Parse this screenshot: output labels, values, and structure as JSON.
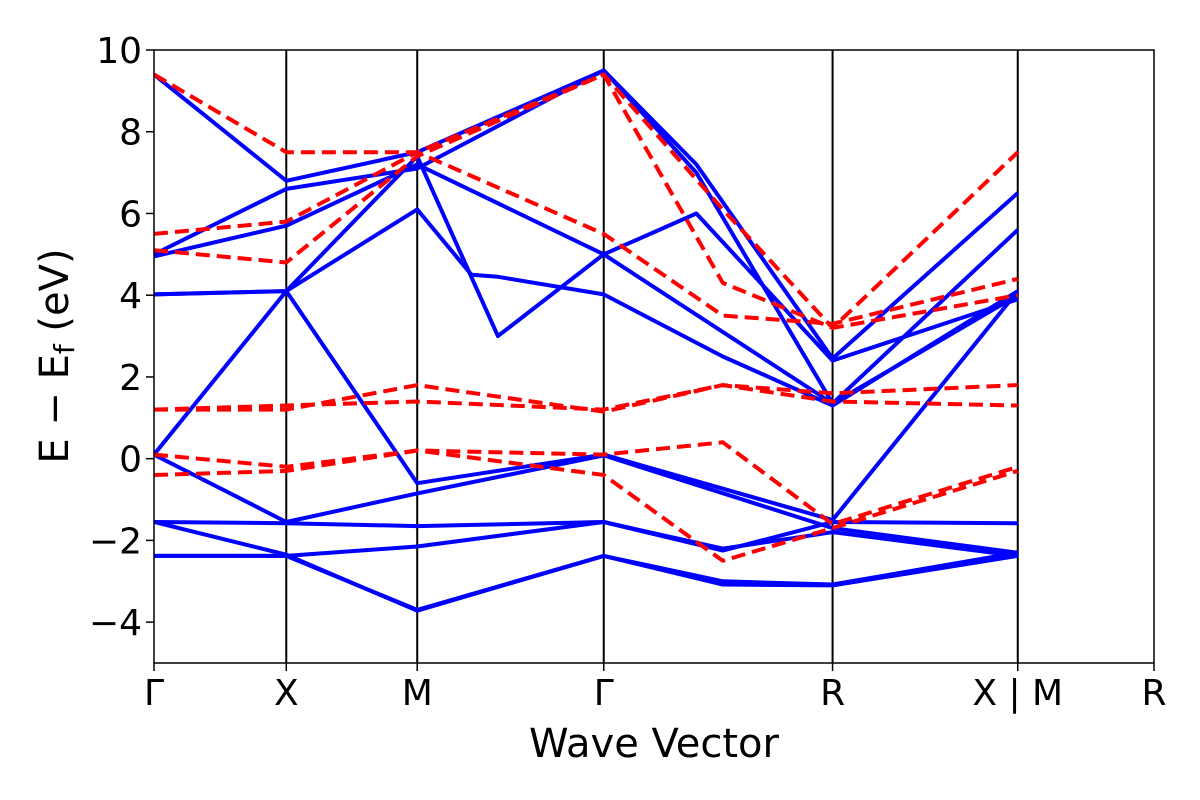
{
  "chart_data": {
    "type": "line",
    "xlabel": "Wave Vector",
    "ylabel": {
      "main": "E − E",
      "sub": "f",
      "unit": " (eV)"
    },
    "ylim": [
      -5,
      10
    ],
    "yticks": [
      {
        "value": -4,
        "label": "−4"
      },
      {
        "value": -2,
        "label": "−2"
      },
      {
        "value": 0,
        "label": "0"
      },
      {
        "value": 2,
        "label": "2"
      },
      {
        "value": 4,
        "label": "4"
      },
      {
        "value": 6,
        "label": "6"
      },
      {
        "value": 8,
        "label": "8"
      },
      {
        "value": 10,
        "label": "10"
      }
    ],
    "xlim": [
      0,
      7.56
    ],
    "kpoints": [
      {
        "label": "Γ",
        "x": 0
      },
      {
        "label": "X",
        "x": 1.0
      },
      {
        "label": "M",
        "x": 1.99
      },
      {
        "label": "Γ",
        "x": 3.4
      },
      {
        "label": "R",
        "x": 5.13
      },
      {
        "label": "X | M",
        "x": 6.53
      },
      {
        "label": "R",
        "x": 7.56
      }
    ],
    "grid": false,
    "series": [
      {
        "style": "solid",
        "color": "#0000ff",
        "bands": [
          [
            [
              0,
              -2.38
            ],
            [
              1,
              -2.38
            ],
            [
              1.99,
              -2.15
            ],
            [
              3.4,
              -1.55
            ],
            [
              4.3,
              -2.25
            ],
            [
              5.13,
              -1.55
            ],
            [
              6.53,
              -1.58
            ]
          ],
          [
            [
              0,
              -1.55
            ],
            [
              1,
              -1.58
            ],
            [
              1.99,
              -1.65
            ],
            [
              3.4,
              -1.55
            ],
            [
              4.3,
              -2.2
            ],
            [
              5.13,
              -1.8
            ],
            [
              6.53,
              -2.38
            ]
          ],
          [
            [
              0,
              -2.38
            ],
            [
              1,
              -2.38
            ],
            [
              1.99,
              -3.7
            ],
            [
              3.4,
              -2.38
            ],
            [
              4.3,
              -3.0
            ],
            [
              5.13,
              -3.08
            ],
            [
              6.53,
              -2.3
            ]
          ],
          [
            [
              0,
              -1.55
            ],
            [
              1,
              -2.35
            ],
            [
              1.99,
              -3.72
            ],
            [
              3.4,
              -2.38
            ],
            [
              4.3,
              -3.08
            ],
            [
              5.13,
              -3.1
            ],
            [
              6.53,
              -2.38
            ]
          ],
          [
            [
              0,
              0.1
            ],
            [
              1,
              -1.55
            ],
            [
              1.99,
              -0.85
            ],
            [
              3.4,
              0.08
            ],
            [
              5.13,
              -1.7
            ],
            [
              6.53,
              -2.3
            ]
          ],
          [
            [
              0,
              0.1
            ],
            [
              1,
              4.1
            ],
            [
              1.99,
              -0.6
            ],
            [
              3.4,
              0.1
            ],
            [
              5.13,
              -1.5
            ],
            [
              6.53,
              4.1
            ]
          ],
          [
            [
              0,
              4.02
            ],
            [
              1,
              4.1
            ],
            [
              1.99,
              6.1
            ],
            [
              2.4,
              4.5
            ],
            [
              2.6,
              4.45
            ],
            [
              3.4,
              4.02
            ],
            [
              4.3,
              2.5
            ],
            [
              5.13,
              1.3
            ],
            [
              6.53,
              4.1
            ]
          ],
          [
            [
              0,
              4.02
            ],
            [
              1,
              4.1
            ],
            [
              1.99,
              7.4
            ],
            [
              2.6,
              3.0
            ],
            [
              3.4,
              5.0
            ],
            [
              5.13,
              1.35
            ],
            [
              6.53,
              4.0
            ]
          ],
          [
            [
              0,
              4.95
            ],
            [
              1,
              5.7
            ],
            [
              1.99,
              7.2
            ],
            [
              3.4,
              5.0
            ],
            [
              4.1,
              6.0
            ],
            [
              5.13,
              2.4
            ],
            [
              6.53,
              3.9
            ]
          ],
          [
            [
              0,
              5.0
            ],
            [
              1,
              6.6
            ],
            [
              1.99,
              7.1
            ],
            [
              3.4,
              9.5
            ],
            [
              4.1,
              7.0
            ],
            [
              5.13,
              1.35
            ],
            [
              6.53,
              5.6
            ]
          ],
          [
            [
              0,
              9.4
            ],
            [
              1,
              6.8
            ],
            [
              1.99,
              7.5
            ],
            [
              3.4,
              9.5
            ],
            [
              4.1,
              7.2
            ],
            [
              5.13,
              2.45
            ],
            [
              6.53,
              6.5
            ]
          ]
        ]
      },
      {
        "style": "dashed",
        "color": "#ff0000",
        "bands": [
          [
            [
              0,
              -0.4
            ],
            [
              1,
              -0.3
            ],
            [
              1.99,
              0.2
            ],
            [
              3.4,
              0.1
            ],
            [
              4.3,
              0.4
            ],
            [
              5.13,
              -1.6
            ],
            [
              6.53,
              -0.2
            ]
          ],
          [
            [
              0,
              0.1
            ],
            [
              1,
              -0.2
            ],
            [
              1.99,
              0.2
            ],
            [
              3.4,
              -0.4
            ],
            [
              4.3,
              -2.5
            ],
            [
              5.13,
              -1.7
            ],
            [
              6.53,
              -0.3
            ]
          ],
          [
            [
              0,
              1.2
            ],
            [
              1,
              1.3
            ],
            [
              1.99,
              1.4
            ],
            [
              3.4,
              1.2
            ],
            [
              4.3,
              1.8
            ],
            [
              5.13,
              1.4
            ],
            [
              6.53,
              1.3
            ]
          ],
          [
            [
              0,
              1.2
            ],
            [
              1,
              1.2
            ],
            [
              1.99,
              1.8
            ],
            [
              3.4,
              1.15
            ],
            [
              4.3,
              1.8
            ],
            [
              5.13,
              1.6
            ],
            [
              6.53,
              1.8
            ]
          ],
          [
            [
              0,
              5.1
            ],
            [
              1,
              4.8
            ],
            [
              1.99,
              7.4
            ],
            [
              3.4,
              9.4
            ],
            [
              4.3,
              4.3
            ],
            [
              5.13,
              3.2
            ],
            [
              6.53,
              4.0
            ]
          ],
          [
            [
              0,
              5.5
            ],
            [
              1,
              5.8
            ],
            [
              1.99,
              7.5
            ],
            [
              3.4,
              5.5
            ],
            [
              4.3,
              3.5
            ],
            [
              5.13,
              3.3
            ],
            [
              6.53,
              4.4
            ]
          ],
          [
            [
              0,
              9.4
            ],
            [
              1,
              7.5
            ],
            [
              1.99,
              7.5
            ],
            [
              3.4,
              9.4
            ],
            [
              4.3,
              6.1
            ],
            [
              5.13,
              3.2
            ],
            [
              6.53,
              7.5
            ]
          ]
        ]
      }
    ]
  }
}
